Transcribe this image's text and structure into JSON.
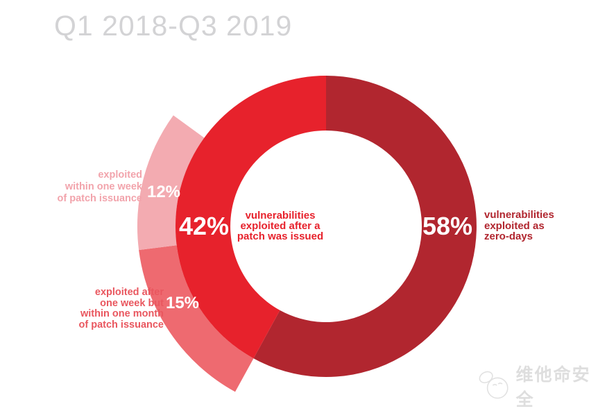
{
  "title": "Q1 2018-Q3 2019",
  "chart_data": {
    "type": "pie",
    "subtype": "donut-with-breakdown-ring",
    "title": "Q1 2018-Q3 2019",
    "unit": "%",
    "clockwise_from_top": true,
    "main_series": [
      {
        "id": "zero-days",
        "label": "vulnerabilities exploited as zero-days",
        "value": 58,
        "pct_label": "58%",
        "color": "#b1262f"
      },
      {
        "id": "after-patch",
        "label": "vulnerabilities exploited after a patch was issued",
        "value": 42,
        "pct_label": "42%",
        "color": "#e7222c"
      }
    ],
    "breakdown_series": [
      {
        "id": "one-week-to-one-month",
        "label": "exploited after one week but within one month of patch issuance",
        "value": 15,
        "pct_label": "15%",
        "color": "#ee6a70"
      },
      {
        "id": "within-one-week",
        "label": "exploited within one week of patch issuance",
        "value": 12,
        "pct_label": "12%",
        "color": "#f3abb1"
      }
    ],
    "layout_hint": {
      "breakdown_ring": "outer-left, starts where zero-days segment ends",
      "legend": "none",
      "grid": false
    }
  },
  "annotations": {
    "within_one_week": {
      "lines": [
        "exploited",
        "within one week",
        "of patch issuance"
      ],
      "color": "#f2a4ac"
    },
    "one_week_to_one_month": {
      "lines": [
        "exploited after",
        "one week but",
        "within one month",
        "of patch issuance"
      ],
      "color": "#e9575f"
    },
    "after_patch": {
      "lines": [
        "vulnerabilities",
        "exploited after a",
        "patch was issued"
      ],
      "color": "#e7222c"
    },
    "zero_days": {
      "lines": [
        "vulnerabilities",
        "exploited as",
        "zero-days"
      ],
      "color": "#b1262f"
    }
  },
  "watermark": {
    "text": "维他命安全"
  }
}
